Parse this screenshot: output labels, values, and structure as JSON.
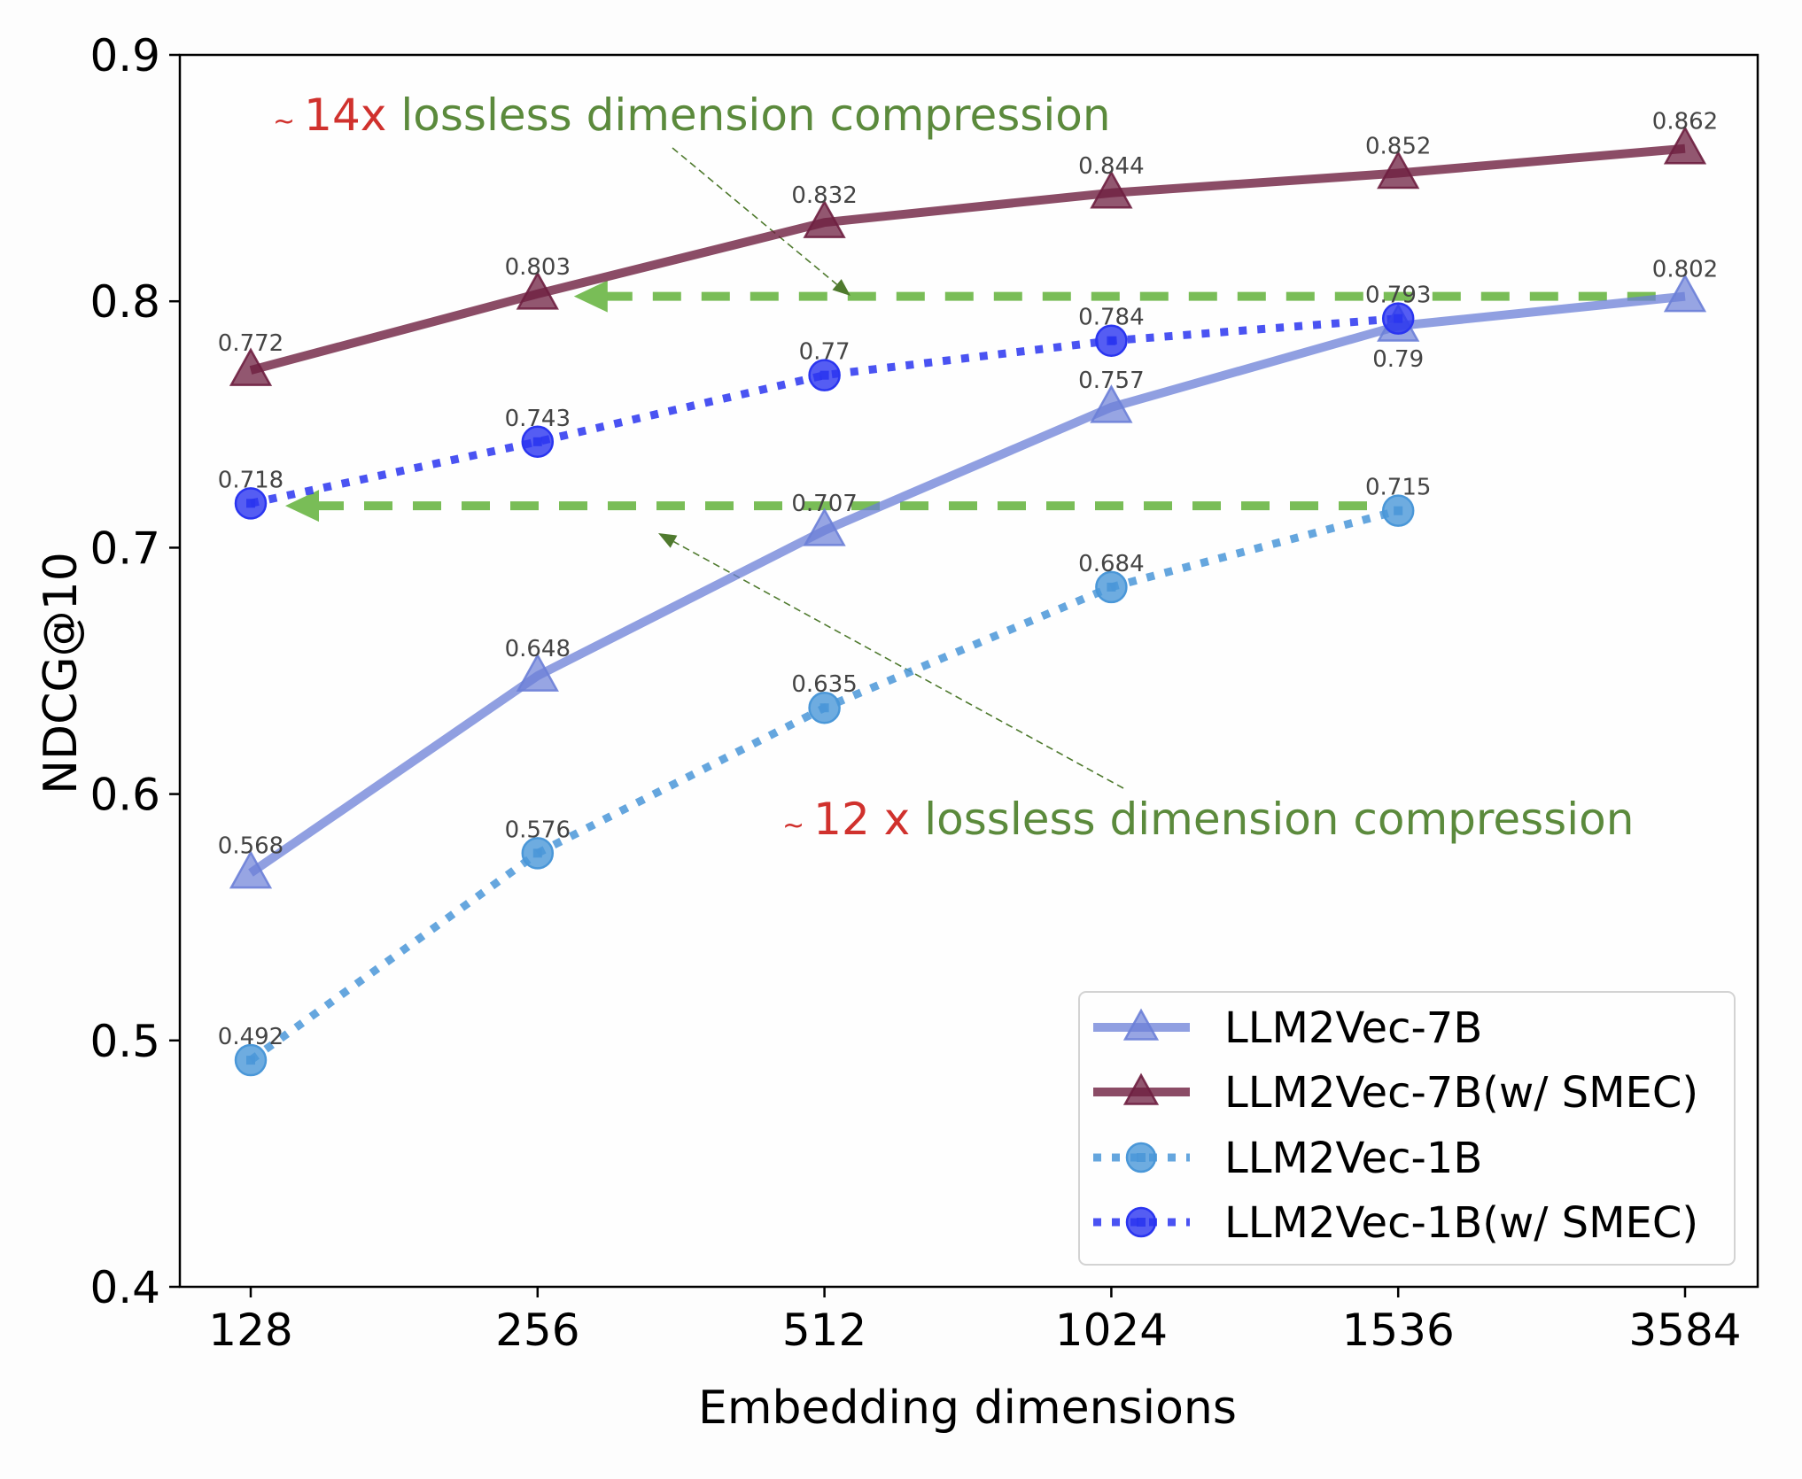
{
  "chart_data": {
    "type": "line",
    "title": "",
    "xlabel": "Embedding dimensions",
    "ylabel": "NDCG@10",
    "categories": [
      "128",
      "256",
      "512",
      "1024",
      "1536",
      "3584"
    ],
    "ylim": [
      0.4,
      0.9
    ],
    "yticks": [
      "0.4",
      "0.5",
      "0.6",
      "0.7",
      "0.8",
      "0.9"
    ],
    "grid": false,
    "legend_position": "bottom-right",
    "series": [
      {
        "name": "LLM2Vec-7B",
        "color": "#6b7fd7",
        "line_style": "solid",
        "marker": "triangle",
        "values": [
          0.568,
          0.648,
          0.707,
          0.757,
          0.79,
          0.802
        ]
      },
      {
        "name": "LLM2Vec-7B(w/ SMEC)",
        "color": "#6e1f40",
        "line_style": "solid",
        "marker": "triangle",
        "values": [
          0.772,
          0.803,
          0.832,
          0.844,
          0.852,
          0.862
        ]
      },
      {
        "name": "LLM2Vec-1B",
        "color": "#4a97d8",
        "line_style": "dotted",
        "marker": "circle",
        "values": [
          0.492,
          0.576,
          0.635,
          0.684,
          0.715,
          null
        ]
      },
      {
        "name": "LLM2Vec-1B(w/ SMEC)",
        "color": "#2a35f0",
        "line_style": "dotted",
        "marker": "circle",
        "values": [
          0.718,
          0.743,
          0.77,
          0.784,
          0.793,
          null
        ]
      }
    ],
    "data_label_text": {
      "LLM2Vec-7B": [
        "0.568",
        "0.648",
        "0.707",
        "0.757",
        "0.79",
        "0.802"
      ],
      "LLM2Vec-7B(w/ SMEC)": [
        "0.772",
        "0.803",
        "0.832",
        "0.844",
        "0.852",
        "0.862"
      ],
      "LLM2Vec-1B": [
        "0.492",
        "0.576",
        "0.635",
        "0.684",
        "0.715"
      ],
      "LLM2Vec-1B(w/ SMEC)": [
        "0.718",
        "0.743",
        "0.77",
        "0.784",
        "0.793"
      ]
    },
    "reference_lines": [
      {
        "name": "upper-compression-line",
        "y": 0.802,
        "from_category": "256",
        "to_category": "3584",
        "color": "#79bd57",
        "style": "dashed",
        "arrow": "left"
      },
      {
        "name": "lower-compression-line",
        "y": 0.717,
        "from_category": "128",
        "to_category": "1536",
        "color": "#79bd57",
        "style": "dashed",
        "arrow": "left"
      }
    ],
    "annotations": [
      {
        "id": "top",
        "prefix": "~",
        "factor": "14x",
        "text": "lossless dimension compression",
        "prefix_color": "#d0312d",
        "text_color": "#5b8a3c"
      },
      {
        "id": "bottom",
        "prefix": "~",
        "factor": "12 x",
        "text": "lossless dimension compression",
        "prefix_color": "#d0312d",
        "text_color": "#5b8a3c"
      }
    ],
    "annotation_arrow_color": "#4f7a2e"
  }
}
